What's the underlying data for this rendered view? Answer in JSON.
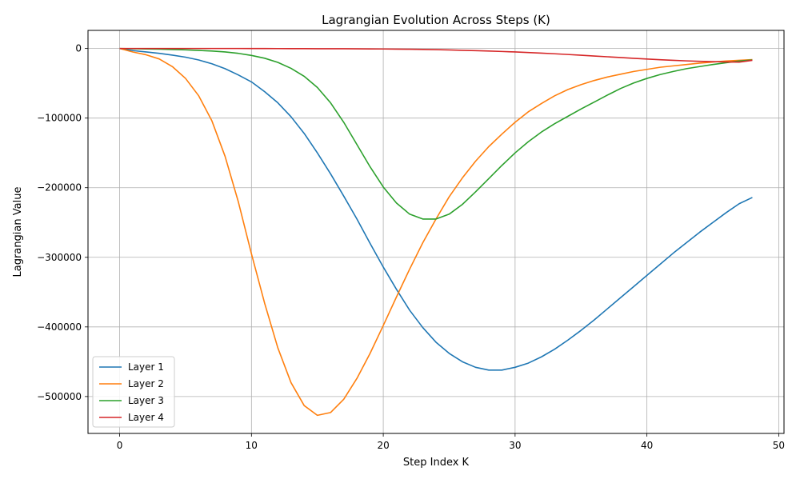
{
  "chart_data": {
    "type": "line",
    "title": "Lagrangian Evolution Across Steps (K)",
    "xlabel": "Step Index K",
    "ylabel": "Lagrangian Value",
    "xlim": [
      -2.4,
      50.4
    ],
    "ylim": [
      -553000,
      26000
    ],
    "xticks": [
      0,
      10,
      20,
      30,
      40,
      50
    ],
    "xtick_labels": [
      "0",
      "10",
      "20",
      "30",
      "40",
      "50"
    ],
    "yticks": [
      0,
      -100000,
      -200000,
      -300000,
      -400000,
      -500000
    ],
    "ytick_labels": [
      "0",
      "−100000",
      "−200000",
      "−300000",
      "−400000",
      "−500000"
    ],
    "grid": true,
    "legend_position": "lower-left",
    "x": [
      0,
      1,
      2,
      3,
      4,
      5,
      6,
      7,
      8,
      9,
      10,
      11,
      12,
      13,
      14,
      15,
      16,
      17,
      18,
      19,
      20,
      21,
      22,
      23,
      24,
      25,
      26,
      27,
      28,
      29,
      30,
      31,
      32,
      33,
      34,
      35,
      36,
      37,
      38,
      39,
      40,
      41,
      42,
      43,
      44,
      45,
      46,
      47,
      48
    ],
    "series": [
      {
        "name": "Layer 1",
        "color": "#1f77b4",
        "values": [
          0,
          -3000,
          -5000,
          -7000,
          -9500,
          -12500,
          -16500,
          -22000,
          -29000,
          -38000,
          -48000,
          -62000,
          -78000,
          -98000,
          -122000,
          -150000,
          -180000,
          -212000,
          -245000,
          -280000,
          -314000,
          -346000,
          -376000,
          -401000,
          -422000,
          -438000,
          -450000,
          -458000,
          -462000,
          -462000,
          -458000,
          -452000,
          -443000,
          -432000,
          -419000,
          -405000,
          -390000,
          -374000,
          -358000,
          -342000,
          -326000,
          -310000,
          -294000,
          -279000,
          -264000,
          -250000,
          -236000,
          -223000,
          -214000
        ]
      },
      {
        "name": "Layer 2",
        "color": "#ff7f0e",
        "values": [
          0,
          -5000,
          -9000,
          -15000,
          -26000,
          -43000,
          -68000,
          -104000,
          -155000,
          -220000,
          -295000,
          -366000,
          -430000,
          -480000,
          -513000,
          -527000,
          -523000,
          -504000,
          -474000,
          -438000,
          -398000,
          -357000,
          -317000,
          -279000,
          -245000,
          -213000,
          -186000,
          -162000,
          -141000,
          -123000,
          -106000,
          -91000,
          -79000,
          -68000,
          -59000,
          -52000,
          -46000,
          -41000,
          -37000,
          -33000,
          -30000,
          -27000,
          -25000,
          -23000,
          -21000,
          -19500,
          -18000,
          -17000,
          -16000
        ]
      },
      {
        "name": "Layer 3",
        "color": "#2ca02c",
        "values": [
          0,
          -300,
          -700,
          -1000,
          -1500,
          -2000,
          -2800,
          -3700,
          -5000,
          -7000,
          -10000,
          -14000,
          -20000,
          -28500,
          -40000,
          -56000,
          -78000,
          -106000,
          -138000,
          -170000,
          -199000,
          -222000,
          -238000,
          -245000,
          -245000,
          -238000,
          -224000,
          -206000,
          -187000,
          -168000,
          -150000,
          -134000,
          -120000,
          -108000,
          -97500,
          -87000,
          -77000,
          -67000,
          -57500,
          -49500,
          -43000,
          -37500,
          -33000,
          -29000,
          -26000,
          -23000,
          -20500,
          -18000,
          -16500
        ]
      },
      {
        "name": "Layer 4",
        "color": "#d62728",
        "values": [
          0,
          0,
          0,
          0,
          0,
          0,
          0,
          0,
          0,
          0,
          -50,
          -100,
          -150,
          -200,
          -250,
          -300,
          -350,
          -400,
          -500,
          -600,
          -700,
          -900,
          -1100,
          -1400,
          -1700,
          -2100,
          -2600,
          -3100,
          -3700,
          -4300,
          -5000,
          -5800,
          -6700,
          -7600,
          -8600,
          -9700,
          -10800,
          -11900,
          -13000,
          -14100,
          -15200,
          -16200,
          -17000,
          -17800,
          -18400,
          -18900,
          -19300,
          -19600,
          -17000
        ]
      }
    ]
  }
}
